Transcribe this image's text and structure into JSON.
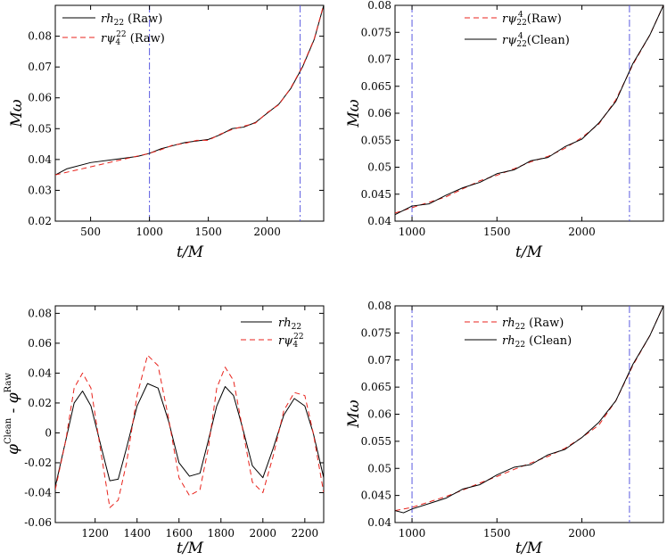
{
  "chart_data": [
    {
      "type": "line",
      "xlabel": "t/M",
      "ylabel": "Mω",
      "xlim": [
        200,
        2480
      ],
      "ylim": [
        0.02,
        0.09
      ],
      "xticks": [
        500,
        1000,
        1500,
        2000
      ],
      "xtick_labels": [
        "500",
        "1000",
        "1500",
        "2000"
      ],
      "yticks": [
        0.02,
        0.03,
        0.04,
        0.05,
        0.06,
        0.07,
        0.08
      ],
      "ytick_labels": [
        "0.02",
        "0.03",
        "0.04",
        "0.05",
        "0.06",
        "0.07",
        "0.08"
      ],
      "legend_position": "top-left",
      "vlines": [
        1000,
        2280
      ],
      "series": [
        {
          "name": "rh22 (Raw)",
          "style": "solid",
          "color": "#000000",
          "x": [
            200,
            300,
            500,
            700,
            900,
            1000,
            1100,
            1200,
            1300,
            1400,
            1500,
            1600,
            1700,
            1800,
            1900,
            2000,
            2100,
            2200,
            2300,
            2400,
            2480
          ],
          "y": [
            0.035,
            0.037,
            0.039,
            0.04,
            0.041,
            0.042,
            0.0435,
            0.0445,
            0.0455,
            0.046,
            0.0465,
            0.048,
            0.05,
            0.0505,
            0.052,
            0.055,
            0.058,
            0.063,
            0.07,
            0.079,
            0.09
          ]
        },
        {
          "name": "rψ4 22 (Raw)",
          "style": "dashed",
          "color": "#e8231c",
          "x": [
            200,
            1000,
            1100,
            1200,
            1300,
            1400,
            1500,
            1600,
            1700,
            1800,
            1900,
            2000,
            2100,
            2200,
            2300,
            2400,
            2480
          ],
          "y": [
            0.035,
            0.042,
            0.0432,
            0.0447,
            0.0452,
            0.0462,
            0.0462,
            0.0482,
            0.0497,
            0.0508,
            0.0518,
            0.0552,
            0.0578,
            0.0632,
            0.0702,
            0.0792,
            0.0902
          ]
        }
      ]
    },
    {
      "type": "line",
      "xlabel": "t/M",
      "ylabel": "Mω",
      "xlim": [
        900,
        2480
      ],
      "ylim": [
        0.04,
        0.08
      ],
      "xticks": [
        1000,
        1500,
        2000
      ],
      "xtick_labels": [
        "1000",
        "1500",
        "2000"
      ],
      "yticks": [
        0.04,
        0.045,
        0.05,
        0.055,
        0.06,
        0.065,
        0.07,
        0.075,
        0.08
      ],
      "ytick_labels": [
        "0.04",
        "0.045",
        "0.05",
        "0.055",
        "0.06",
        "0.065",
        "0.07",
        "0.075",
        "0.08"
      ],
      "legend_position": "top-center",
      "vlines": [
        1000,
        2280
      ],
      "series": [
        {
          "name": "rψ22 4 (Raw)",
          "style": "dashed",
          "color": "#e8231c",
          "x": [
            900,
            1000,
            1100,
            1200,
            1300,
            1400,
            1500,
            1600,
            1700,
            1800,
            1900,
            2000,
            2100,
            2200,
            2300,
            2400,
            2480
          ],
          "y": [
            0.0415,
            0.0425,
            0.0435,
            0.0445,
            0.046,
            0.0475,
            0.0485,
            0.0497,
            0.051,
            0.052,
            0.0535,
            0.0555,
            0.058,
            0.0625,
            0.069,
            0.0745,
            0.08
          ]
        },
        {
          "name": "rψ22 4 (Clean)",
          "style": "solid",
          "color": "#000000",
          "x": [
            900,
            1000,
            1100,
            1200,
            1300,
            1400,
            1500,
            1600,
            1700,
            1800,
            1900,
            2000,
            2100,
            2200,
            2300,
            2400,
            2480
          ],
          "y": [
            0.0412,
            0.0428,
            0.0432,
            0.0448,
            0.0462,
            0.0472,
            0.0488,
            0.0495,
            0.0512,
            0.0518,
            0.0538,
            0.0552,
            0.0582,
            0.0622,
            0.0692,
            0.0745,
            0.08
          ]
        }
      ]
    },
    {
      "type": "line",
      "xlabel": "t/M",
      "ylabel": "φClean - φRaw",
      "xlim": [
        1010,
        2290
      ],
      "ylim": [
        -0.06,
        0.085
      ],
      "xticks": [
        1200,
        1400,
        1600,
        1800,
        2000,
        2200
      ],
      "xtick_labels": [
        "1200",
        "1400",
        "1600",
        "1800",
        "2000",
        "2200"
      ],
      "yticks": [
        -0.06,
        -0.04,
        -0.02,
        0,
        0.02,
        0.04,
        0.06,
        0.08
      ],
      "ytick_labels": [
        "-0.06",
        "-0.04",
        "-0.02",
        "0",
        "0.02",
        "0.04",
        "0.06",
        "0.08"
      ],
      "legend_position": "top-right",
      "vlines": [],
      "series": [
        {
          "name": "rh22",
          "style": "solid",
          "color": "#000000",
          "x": [
            1010,
            1060,
            1100,
            1140,
            1180,
            1230,
            1270,
            1310,
            1350,
            1400,
            1450,
            1500,
            1550,
            1600,
            1650,
            1700,
            1740,
            1780,
            1820,
            1860,
            1900,
            1950,
            2000,
            2050,
            2100,
            2150,
            2200,
            2240,
            2290
          ],
          "y": [
            -0.036,
            -0.005,
            0.02,
            0.028,
            0.018,
            -0.01,
            -0.032,
            -0.031,
            -0.01,
            0.018,
            0.033,
            0.03,
            0.008,
            -0.02,
            -0.029,
            -0.027,
            -0.005,
            0.018,
            0.031,
            0.025,
            0.005,
            -0.022,
            -0.03,
            -0.01,
            0.012,
            0.023,
            0.018,
            0.0,
            -0.03
          ]
        },
        {
          "name": "rψ4 22",
          "style": "dashed",
          "color": "#e8231c",
          "x": [
            1010,
            1060,
            1100,
            1140,
            1180,
            1230,
            1270,
            1310,
            1350,
            1400,
            1450,
            1500,
            1550,
            1600,
            1650,
            1700,
            1740,
            1780,
            1820,
            1860,
            1900,
            1950,
            2000,
            2050,
            2100,
            2150,
            2200,
            2240,
            2290
          ],
          "y": [
            -0.038,
            -0.005,
            0.03,
            0.04,
            0.03,
            -0.015,
            -0.05,
            -0.045,
            -0.02,
            0.025,
            0.052,
            0.045,
            0.01,
            -0.03,
            -0.042,
            -0.038,
            -0.01,
            0.03,
            0.044,
            0.035,
            0.005,
            -0.033,
            -0.04,
            -0.015,
            0.015,
            0.027,
            0.025,
            0.0,
            -0.04
          ]
        }
      ]
    },
    {
      "type": "line",
      "xlabel": "t/M",
      "ylabel": "Mω",
      "xlim": [
        900,
        2480
      ],
      "ylim": [
        0.04,
        0.08
      ],
      "xticks": [
        1000,
        1500,
        2000
      ],
      "xtick_labels": [
        "1000",
        "1500",
        "2000"
      ],
      "yticks": [
        0.04,
        0.045,
        0.05,
        0.055,
        0.06,
        0.065,
        0.07,
        0.075,
        0.08
      ],
      "ytick_labels": [
        "0.04",
        "0.045",
        "0.05",
        "0.055",
        "0.06",
        "0.065",
        "0.07",
        "0.075",
        "0.08"
      ],
      "legend_position": "top-center",
      "vlines": [
        1000,
        2280
      ],
      "series": [
        {
          "name": "rh22 (Raw)",
          "style": "dashed",
          "color": "#e8231c",
          "x": [
            900,
            1000,
            1100,
            1200,
            1300,
            1400,
            1500,
            1600,
            1700,
            1800,
            1900,
            2000,
            2100,
            2200,
            2300,
            2400,
            2480
          ],
          "y": [
            0.0422,
            0.0428,
            0.0438,
            0.0448,
            0.046,
            0.0473,
            0.0485,
            0.0498,
            0.051,
            0.0522,
            0.0537,
            0.0557,
            0.058,
            0.0625,
            0.069,
            0.0745,
            0.08
          ]
        },
        {
          "name": "rh22 (Clean)",
          "style": "solid",
          "color": "#000000",
          "x": [
            900,
            950,
            1000,
            1100,
            1200,
            1300,
            1400,
            1500,
            1600,
            1700,
            1800,
            1900,
            2000,
            2100,
            2200,
            2300,
            2400,
            2480
          ],
          "y": [
            0.0422,
            0.0418,
            0.0425,
            0.0435,
            0.0445,
            0.0462,
            0.047,
            0.0488,
            0.0502,
            0.0507,
            0.0525,
            0.0535,
            0.0557,
            0.0585,
            0.0625,
            0.0692,
            0.0745,
            0.08
          ]
        }
      ]
    }
  ]
}
